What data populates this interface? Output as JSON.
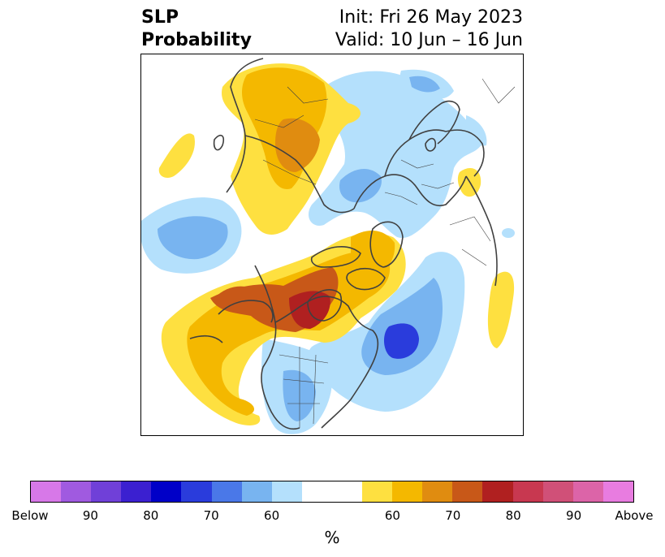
{
  "title": {
    "left_line1": "SLP",
    "left_line2": "Probability",
    "right_line1": "Init: Fri 26 May 2023",
    "right_line2": "Valid: 10 Jun – 16 Jun"
  },
  "colorbar": {
    "unit": "%",
    "colors": [
      "#d778e8",
      "#a05ae0",
      "#7040d8",
      "#3b20d0",
      "#0000c8",
      "#2a3cdc",
      "#4a78e8",
      "#78b4f0",
      "#b4e0fc",
      "#ffffff",
      "#ffffff",
      "#fee040",
      "#f4b800",
      "#e08c10",
      "#c85818",
      "#b02020",
      "#c83850",
      "#d05078",
      "#dc64a8",
      "#e87ce0"
    ],
    "ticks": [
      "Below",
      "90",
      "80",
      "70",
      "60",
      "60",
      "70",
      "80",
      "90",
      "Above"
    ]
  },
  "map": {
    "colors": {
      "blue_light": "#b4e0fc",
      "blue_mid": "#78b4f0",
      "blue_strong": "#4a78e8",
      "blue_deep": "#2a3cdc",
      "yellow": "#fee040",
      "gold": "#f4b800",
      "orange": "#e08c10",
      "rust": "#c85818",
      "red": "#b02020",
      "coast": "#404040"
    }
  }
}
